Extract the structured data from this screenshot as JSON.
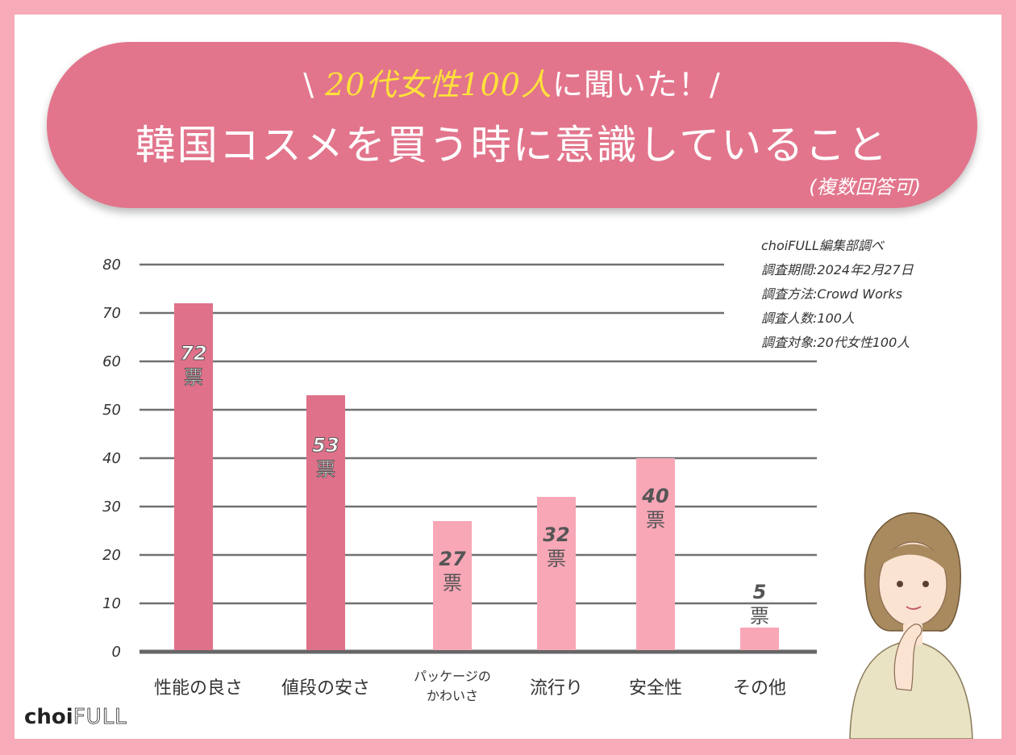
{
  "header": {
    "prefix": "\\ ",
    "highlight": "20代女性100人",
    "suffix": "に聞いた！/",
    "title": "韓国コスメを買う時に意識していること",
    "note": "(複数回答可)"
  },
  "survey_info": [
    "choiFULL編集部調べ",
    "調査期間:2024年2月27日",
    "調査方法:Crowd Works",
    "調査人数:100人",
    "調査対象:20代女性100人"
  ],
  "brand": {
    "name": "choi",
    "name2": "FULL"
  },
  "colors": {
    "dark_bar": "#e0718a",
    "light_bar": "#f8a7b7",
    "banner": "#e2758c",
    "background": "#f7aab8"
  },
  "chart_data": {
    "type": "bar",
    "categories": [
      "性能の良さ",
      "値段の安さ",
      "パッケージの\nかわいさ",
      "流行り",
      "安全性",
      "その他"
    ],
    "values": [
      72,
      53,
      27,
      32,
      40,
      5
    ],
    "unit": "票",
    "highlight": [
      true,
      true,
      false,
      false,
      false,
      false
    ],
    "ylim": [
      0,
      80
    ],
    "yticks": [
      0,
      10,
      20,
      30,
      40,
      50,
      60,
      70,
      80
    ],
    "grid": true
  }
}
